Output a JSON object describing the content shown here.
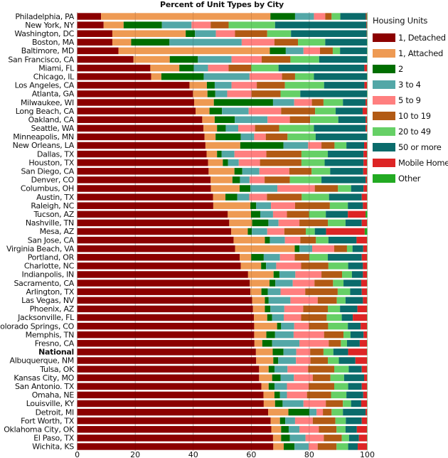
{
  "chart_data": {
    "type": "bar",
    "orientation": "horizontal",
    "stacked": true,
    "title": "Percent of Unit Types by City",
    "xlabel": "",
    "ylabel": "",
    "xlim": [
      0,
      100
    ],
    "xticks": [
      0,
      20,
      40,
      60,
      80,
      100
    ],
    "grid": "vertical",
    "legend": {
      "title": "Housing Units",
      "placement": "right"
    },
    "series_names": [
      "1, Detached",
      "1, Attached",
      "2",
      "3 to 4",
      "5 to 9",
      "10 to 19",
      "20 to 49",
      "50 or more",
      "Mobile Home",
      "Other"
    ],
    "series_colors": [
      "#8b0000",
      "#ee9a53",
      "#006e00",
      "#53a7a7",
      "#ff7f7f",
      "#b25a14",
      "#66d066",
      "#0a6b6b",
      "#dd2525",
      "#22aa22"
    ],
    "bold_categories": [
      "National"
    ],
    "categories": [
      "Philadelphia, PA",
      "New York, NY",
      "Washington, DC",
      "Boston, MA",
      "Baltimore, MD",
      "San Francisco, CA",
      "Miami, FL",
      "Chicago, IL",
      "Los Angeles, CA",
      "Atlanta, GA",
      "Milwaukee, WI",
      "Long Beach, CA",
      "Oakland, CA",
      "Seattle, WA",
      "Minneapolis, MN",
      "New Orleans, LA",
      "Dallas, TX",
      "Houston, TX",
      "San Diego, CA",
      "Denver, CO",
      "Columbus, OH",
      "Austin, TX",
      "Raleigh, NC",
      "Tucson, AZ",
      "Nashville, TN",
      "Mesa, AZ",
      "San Jose, CA",
      "Virginia Beach, VA",
      "Portland, OR",
      "Charlotte, NC",
      "Indianpolis, IN",
      "Sacramento, CA",
      "Arlington, TX",
      "Las Vegas, NV",
      "Phoenix, AZ",
      "Jacksonville, FL",
      "Colorado Springs, CO",
      "Memphis, TN",
      "Fresno, CA",
      "National",
      "Albuquerque, NM",
      "Tulsa, OK",
      "Kansas City, MO",
      "San Antonio. TX",
      "Omaha, NE",
      "Louisville, KY",
      "Detroit, MI",
      "Fort Worth, TX",
      "Oklahoma City, OK",
      "El Paso, TX",
      "Wichita, KS"
    ],
    "values_note": "Each row lists percent for: 1 Detached, 1 Attached, 2, 3 to 4, 5 to 9, 10 to 19, 20 to 49, 50 or more, Mobile Home, Other",
    "values": [
      [
        8.2,
        58.4,
        8.5,
        6.5,
        3.9,
        2.2,
        3.0,
        8.8,
        0.3,
        0.2
      ],
      [
        9.1,
        6.9,
        13.2,
        10.2,
        6.6,
        6.2,
        16.0,
        31.5,
        0.2,
        0.1
      ],
      [
        12.1,
        25.3,
        3.2,
        7.2,
        6.6,
        11.1,
        8.2,
        26.1,
        0.1,
        0.1
      ],
      [
        12.1,
        6.5,
        13.2,
        24.9,
        11.3,
        8.1,
        9.4,
        14.4,
        0.0,
        0.1
      ],
      [
        14.2,
        52.2,
        5.5,
        6.1,
        5.7,
        4.4,
        2.5,
        9.3,
        0.0,
        0.1
      ],
      [
        19.4,
        12.5,
        9.7,
        11.6,
        10.4,
        9.9,
        9.9,
        16.5,
        0.0,
        0.1
      ],
      [
        25.2,
        10.0,
        5.0,
        4.9,
        7.1,
        7.8,
        9.4,
        29.6,
        0.9,
        0.1
      ],
      [
        25.5,
        3.5,
        14.6,
        15.8,
        11.2,
        4.5,
        6.5,
        18.3,
        0.0,
        0.1
      ],
      [
        38.7,
        6.0,
        2.7,
        5.8,
        8.7,
        9.7,
        13.5,
        13.9,
        0.9,
        0.1
      ],
      [
        39.9,
        5.0,
        2.7,
        4.1,
        8.4,
        10.0,
        6.8,
        23.0,
        0.0,
        0.1
      ],
      [
        40.3,
        6.8,
        20.4,
        7.3,
        6.1,
        4.0,
        6.7,
        7.8,
        0.5,
        0.1
      ],
      [
        40.8,
        4.8,
        4.3,
        9.2,
        11.2,
        11.7,
        7.1,
        9.3,
        1.5,
        0.1
      ],
      [
        43.1,
        4.3,
        6.9,
        11.3,
        7.7,
        7.0,
        9.7,
        9.4,
        0.5,
        0.1
      ],
      [
        43.5,
        4.7,
        3.0,
        4.3,
        5.8,
        8.3,
        12.0,
        17.8,
        0.5,
        0.1
      ],
      [
        43.9,
        3.8,
        8.7,
        4.6,
        4.0,
        7.5,
        9.7,
        17.7,
        0.0,
        0.1
      ],
      [
        44.2,
        12.0,
        14.9,
        8.5,
        4.6,
        4.5,
        4.1,
        6.1,
        1.0,
        0.1
      ],
      [
        44.6,
        3.6,
        1.6,
        4.4,
        11.0,
        12.1,
        9.1,
        12.3,
        1.2,
        0.1
      ],
      [
        45.1,
        5.1,
        1.8,
        3.7,
        7.3,
        14.3,
        8.0,
        13.4,
        1.2,
        0.1
      ],
      [
        45.3,
        8.9,
        2.7,
        5.9,
        10.3,
        7.7,
        6.4,
        11.4,
        1.3,
        0.1
      ],
      [
        46.0,
        7.5,
        2.6,
        3.3,
        5.2,
        8.7,
        10.9,
        15.2,
        0.5,
        0.1
      ],
      [
        46.1,
        9.9,
        3.7,
        9.3,
        12.9,
        8.0,
        4.5,
        4.3,
        1.2,
        0.1
      ],
      [
        46.8,
        4.3,
        4.1,
        4.1,
        6.1,
        12.0,
        9.4,
        11.3,
        1.8,
        0.1
      ],
      [
        46.9,
        12.8,
        2.0,
        5.1,
        8.3,
        12.0,
        6.2,
        5.2,
        1.4,
        0.1
      ],
      [
        51.9,
        8.0,
        3.2,
        4.4,
        4.8,
        7.6,
        5.8,
        7.6,
        6.1,
        0.6
      ],
      [
        52.4,
        7.9,
        5.6,
        3.5,
        7.2,
        9.8,
        6.1,
        5.6,
        1.8,
        0.1
      ],
      [
        53.1,
        5.7,
        1.4,
        5.3,
        5.9,
        7.4,
        3.1,
        3.9,
        13.3,
        0.9
      ],
      [
        53.9,
        10.8,
        1.7,
        5.2,
        5.3,
        5.4,
        4.3,
        9.7,
        3.6,
        0.1
      ],
      [
        54.4,
        20.6,
        1.6,
        4.4,
        7.6,
        4.4,
        1.9,
        3.7,
        1.3,
        0.1
      ],
      [
        56.0,
        4.0,
        4.3,
        5.6,
        5.1,
        5.0,
        6.4,
        11.7,
        1.8,
        0.1
      ],
      [
        56.4,
        7.0,
        1.7,
        3.5,
        8.6,
        9.4,
        6.8,
        5.1,
        1.4,
        0.1
      ],
      [
        58.9,
        8.8,
        2.0,
        5.5,
        9.0,
        7.1,
        3.4,
        3.8,
        1.4,
        0.1
      ],
      [
        59.5,
        6.8,
        2.0,
        6.0,
        7.5,
        6.4,
        3.6,
        6.1,
        2.0,
        0.1
      ],
      [
        59.7,
        3.8,
        2.2,
        4.4,
        8.5,
        11.2,
        4.3,
        4.0,
        1.8,
        0.1
      ],
      [
        60.3,
        4.4,
        1.3,
        7.5,
        9.4,
        6.6,
        3.0,
        6.0,
        1.4,
        0.1
      ],
      [
        60.6,
        4.1,
        1.9,
        4.8,
        6.5,
        8.5,
        4.2,
        6.0,
        3.3,
        0.1
      ],
      [
        60.9,
        4.6,
        1.7,
        4.0,
        6.0,
        8.8,
        5.2,
        3.8,
        4.9,
        0.1
      ],
      [
        61.0,
        7.9,
        1.4,
        4.5,
        5.1,
        6.6,
        6.8,
        4.4,
        2.2,
        0.1
      ],
      [
        61.0,
        4.2,
        3.0,
        6.4,
        10.5,
        6.7,
        2.4,
        4.5,
        1.2,
        0.1
      ],
      [
        61.1,
        2.7,
        3.4,
        9.4,
        10.1,
        4.2,
        2.1,
        4.4,
        2.5,
        0.1
      ],
      [
        61.6,
        5.8,
        3.7,
        4.4,
        4.8,
        4.6,
        3.4,
        5.1,
        6.5,
        0.1
      ],
      [
        61.7,
        5.9,
        1.7,
        6.1,
        5.0,
        6.0,
        3.8,
        5.7,
        4.0,
        0.1
      ],
      [
        62.7,
        3.3,
        2.0,
        4.5,
        7.1,
        9.0,
        5.0,
        4.5,
        1.8,
        0.1
      ],
      [
        62.7,
        4.5,
        2.9,
        4.6,
        6.5,
        6.1,
        4.7,
        6.9,
        1.0,
        0.1
      ],
      [
        63.5,
        2.5,
        2.0,
        4.3,
        7.5,
        8.8,
        4.8,
        4.7,
        1.8,
        0.1
      ],
      [
        64.2,
        3.8,
        1.9,
        2.4,
        6.9,
        8.3,
        5.3,
        5.8,
        1.3,
        0.1
      ],
      [
        64.3,
        3.9,
        2.6,
        7.2,
        7.7,
        5.9,
        2.8,
        3.5,
        2.0,
        0.1
      ],
      [
        65.8,
        7.0,
        7.2,
        2.5,
        2.2,
        3.0,
        3.9,
        7.8,
        0.5,
        0.1
      ],
      [
        66.7,
        3.2,
        1.8,
        3.4,
        6.1,
        7.8,
        3.6,
        5.5,
        1.8,
        0.1
      ],
      [
        66.9,
        3.4,
        2.6,
        3.7,
        6.7,
        6.1,
        3.1,
        3.9,
        3.5,
        0.1
      ],
      [
        67.5,
        2.8,
        3.0,
        5.4,
        6.3,
        6.2,
        2.5,
        3.4,
        2.8,
        0.1
      ],
      [
        67.6,
        3.6,
        3.7,
        4.9,
        3.1,
        6.5,
        4.0,
        3.3,
        3.2,
        0.1
      ]
    ]
  }
}
